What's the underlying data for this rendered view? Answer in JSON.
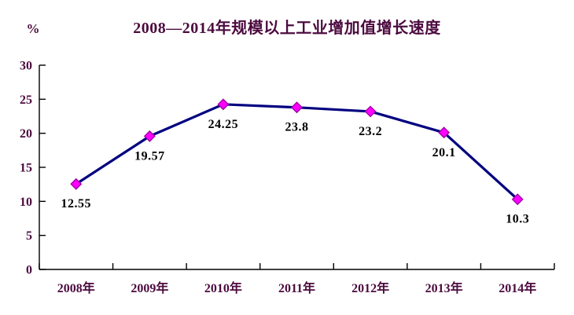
{
  "page": {
    "background": "#FFFFFF"
  },
  "chart_data": {
    "type": "line",
    "title": "2008—2014年规模以上工业增加值增长速度",
    "ylabel": "%",
    "xlabel": "",
    "categories": [
      "2008年",
      "2009年",
      "2010年",
      "2011年",
      "2012年",
      "2013年",
      "2014年"
    ],
    "values": [
      12.55,
      19.57,
      24.25,
      23.8,
      23.2,
      20.1,
      10.3
    ],
    "data_labels": [
      "12.55",
      "19.57",
      "24.25",
      "23.8",
      "23.2",
      "20.1",
      "10.3"
    ],
    "ylim": [
      0,
      30
    ],
    "yticks": [
      0,
      5,
      10,
      15,
      20,
      25,
      30
    ],
    "grid": false,
    "legend": "none",
    "marker_shape": "diamond",
    "colors": {
      "title_text": "#4C0B3F",
      "axis_text": "#4C0B3F",
      "data_label": "#000000",
      "line": "#000080",
      "marker_fill": "#FF00FF",
      "marker_border": "#A000A8",
      "axis_line": "#000000"
    }
  }
}
